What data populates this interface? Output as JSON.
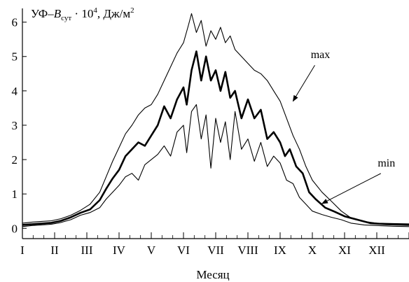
{
  "chart_data": {
    "type": "line",
    "title": "",
    "ylabel": {
      "prefix": "УФ–",
      "var": "B",
      "sub": "сут",
      "mult": " · 10",
      "exp": "4",
      "unit": ",  Дж/м",
      "unit_exp": "2"
    },
    "xlabel": "Месяц",
    "x_tick_labels": [
      "I",
      "II",
      "III",
      "IV",
      "V",
      "VI",
      "VII",
      "VIII",
      "IX",
      "X",
      "XI",
      "XII"
    ],
    "x_unit": "month index (1 = January start, 13 = year end)",
    "xlim": [
      1,
      13
    ],
    "ylim": [
      -0.3,
      6.4
    ],
    "y_ticks": [
      0,
      1,
      2,
      3,
      4,
      5,
      6
    ],
    "grid": false,
    "series": [
      {
        "name": "max",
        "line_width": 1.1,
        "points": [
          [
            1.0,
            0.15
          ],
          [
            1.3,
            0.18
          ],
          [
            1.6,
            0.2
          ],
          [
            1.9,
            0.22
          ],
          [
            2.2,
            0.28
          ],
          [
            2.5,
            0.38
          ],
          [
            2.8,
            0.52
          ],
          [
            3.1,
            0.7
          ],
          [
            3.4,
            1.05
          ],
          [
            3.6,
            1.5
          ],
          [
            3.8,
            1.95
          ],
          [
            4.0,
            2.35
          ],
          [
            4.2,
            2.75
          ],
          [
            4.4,
            3.0
          ],
          [
            4.6,
            3.3
          ],
          [
            4.8,
            3.5
          ],
          [
            5.0,
            3.6
          ],
          [
            5.2,
            3.9
          ],
          [
            5.4,
            4.3
          ],
          [
            5.6,
            4.7
          ],
          [
            5.8,
            5.1
          ],
          [
            6.0,
            5.4
          ],
          [
            6.15,
            5.9
          ],
          [
            6.25,
            6.25
          ],
          [
            6.4,
            5.7
          ],
          [
            6.55,
            6.05
          ],
          [
            6.7,
            5.3
          ],
          [
            6.85,
            5.75
          ],
          [
            7.0,
            5.5
          ],
          [
            7.15,
            5.85
          ],
          [
            7.3,
            5.4
          ],
          [
            7.45,
            5.6
          ],
          [
            7.6,
            5.2
          ],
          [
            7.8,
            5.0
          ],
          [
            8.0,
            4.8
          ],
          [
            8.2,
            4.6
          ],
          [
            8.4,
            4.5
          ],
          [
            8.6,
            4.3
          ],
          [
            8.8,
            4.0
          ],
          [
            9.0,
            3.7
          ],
          [
            9.2,
            3.2
          ],
          [
            9.4,
            2.7
          ],
          [
            9.6,
            2.3
          ],
          [
            9.8,
            1.8
          ],
          [
            10.0,
            1.4
          ],
          [
            10.3,
            1.05
          ],
          [
            10.6,
            0.78
          ],
          [
            10.9,
            0.5
          ],
          [
            11.2,
            0.3
          ],
          [
            11.6,
            0.2
          ],
          [
            12.0,
            0.15
          ],
          [
            12.5,
            0.14
          ],
          [
            13.0,
            0.13
          ]
        ]
      },
      {
        "name": "",
        "line_width": 2.6,
        "points": [
          [
            1.0,
            0.1
          ],
          [
            1.3,
            0.12
          ],
          [
            1.6,
            0.14
          ],
          [
            1.9,
            0.16
          ],
          [
            2.2,
            0.22
          ],
          [
            2.5,
            0.32
          ],
          [
            2.8,
            0.45
          ],
          [
            3.1,
            0.55
          ],
          [
            3.4,
            0.82
          ],
          [
            3.6,
            1.15
          ],
          [
            3.8,
            1.45
          ],
          [
            4.0,
            1.7
          ],
          [
            4.2,
            2.1
          ],
          [
            4.4,
            2.3
          ],
          [
            4.6,
            2.5
          ],
          [
            4.8,
            2.4
          ],
          [
            5.0,
            2.7
          ],
          [
            5.2,
            3.0
          ],
          [
            5.4,
            3.55
          ],
          [
            5.6,
            3.2
          ],
          [
            5.8,
            3.75
          ],
          [
            6.0,
            4.1
          ],
          [
            6.1,
            3.6
          ],
          [
            6.25,
            4.6
          ],
          [
            6.4,
            5.15
          ],
          [
            6.55,
            4.3
          ],
          [
            6.7,
            5.0
          ],
          [
            6.85,
            4.3
          ],
          [
            7.0,
            4.6
          ],
          [
            7.15,
            4.0
          ],
          [
            7.3,
            4.55
          ],
          [
            7.45,
            3.8
          ],
          [
            7.6,
            4.0
          ],
          [
            7.8,
            3.2
          ],
          [
            8.0,
            3.75
          ],
          [
            8.2,
            3.2
          ],
          [
            8.4,
            3.45
          ],
          [
            8.6,
            2.6
          ],
          [
            8.8,
            2.8
          ],
          [
            9.0,
            2.5
          ],
          [
            9.15,
            2.1
          ],
          [
            9.3,
            2.3
          ],
          [
            9.5,
            1.8
          ],
          [
            9.7,
            1.6
          ],
          [
            9.9,
            1.05
          ],
          [
            10.1,
            0.85
          ],
          [
            10.4,
            0.6
          ],
          [
            10.7,
            0.48
          ],
          [
            11.0,
            0.35
          ],
          [
            11.4,
            0.25
          ],
          [
            11.8,
            0.15
          ],
          [
            12.3,
            0.12
          ],
          [
            13.0,
            0.1
          ]
        ]
      },
      {
        "name": "min",
        "line_width": 1.1,
        "points": [
          [
            1.0,
            0.05
          ],
          [
            1.3,
            0.08
          ],
          [
            1.6,
            0.1
          ],
          [
            1.9,
            0.12
          ],
          [
            2.2,
            0.17
          ],
          [
            2.5,
            0.25
          ],
          [
            2.8,
            0.38
          ],
          [
            3.1,
            0.46
          ],
          [
            3.4,
            0.6
          ],
          [
            3.6,
            0.85
          ],
          [
            3.8,
            1.05
          ],
          [
            4.0,
            1.25
          ],
          [
            4.2,
            1.5
          ],
          [
            4.4,
            1.6
          ],
          [
            4.6,
            1.4
          ],
          [
            4.8,
            1.85
          ],
          [
            5.0,
            2.0
          ],
          [
            5.2,
            2.15
          ],
          [
            5.4,
            2.4
          ],
          [
            5.6,
            2.1
          ],
          [
            5.8,
            2.8
          ],
          [
            6.0,
            3.0
          ],
          [
            6.1,
            2.2
          ],
          [
            6.25,
            3.4
          ],
          [
            6.4,
            3.6
          ],
          [
            6.55,
            2.6
          ],
          [
            6.7,
            3.3
          ],
          [
            6.85,
            1.75
          ],
          [
            7.0,
            3.2
          ],
          [
            7.15,
            2.5
          ],
          [
            7.3,
            3.1
          ],
          [
            7.45,
            2.0
          ],
          [
            7.6,
            3.4
          ],
          [
            7.8,
            2.3
          ],
          [
            8.0,
            2.6
          ],
          [
            8.2,
            1.95
          ],
          [
            8.4,
            2.5
          ],
          [
            8.6,
            1.8
          ],
          [
            8.8,
            2.1
          ],
          [
            9.0,
            1.9
          ],
          [
            9.2,
            1.4
          ],
          [
            9.4,
            1.3
          ],
          [
            9.6,
            0.9
          ],
          [
            9.8,
            0.7
          ],
          [
            10.0,
            0.5
          ],
          [
            10.3,
            0.4
          ],
          [
            10.6,
            0.32
          ],
          [
            10.9,
            0.25
          ],
          [
            11.2,
            0.15
          ],
          [
            11.6,
            0.1
          ],
          [
            12.0,
            0.08
          ],
          [
            12.5,
            0.06
          ],
          [
            13.0,
            0.05
          ]
        ]
      }
    ],
    "annotations": [
      {
        "text": "max",
        "text_pos": [
          10.25,
          4.95
        ],
        "arrow_to": [
          9.4,
          3.7
        ]
      },
      {
        "text": "min",
        "text_pos": [
          12.3,
          1.8
        ],
        "arrow_to": [
          10.3,
          0.72
        ]
      }
    ]
  }
}
